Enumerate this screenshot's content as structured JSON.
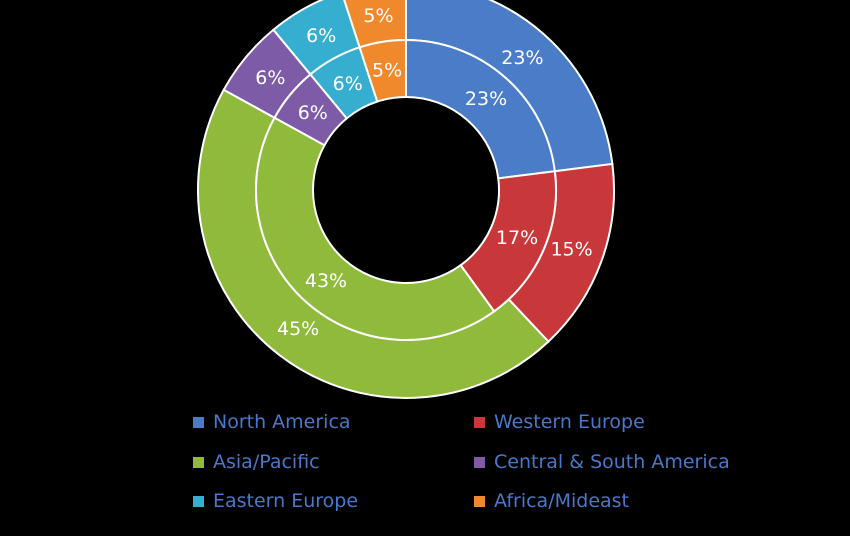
{
  "chart_data": {
    "type": "donut",
    "rings": [
      {
        "ring": "outer",
        "values": [
          23,
          15,
          45,
          6,
          6,
          5
        ],
        "labels": [
          "23%",
          "15%",
          "45%",
          "6%",
          "6%",
          "5%"
        ]
      },
      {
        "ring": "inner",
        "values": [
          23,
          17,
          43,
          6,
          6,
          5
        ],
        "labels": [
          "23%",
          "17%",
          "43%",
          "6%",
          "6%",
          "5%"
        ]
      }
    ],
    "categories": [
      {
        "name": "North America",
        "color": "#4a7cc7"
      },
      {
        "name": "Western Europe",
        "color": "#c8383a"
      },
      {
        "name": "Asia/Pacific",
        "color": "#8fba3c"
      },
      {
        "name": "Central & South America",
        "color": "#7d5ba6"
      },
      {
        "name": "Eastern Europe",
        "color": "#35aed0"
      },
      {
        "name": "Africa/Mideast",
        "color": "#f0892c"
      }
    ],
    "start_angle_deg": 0,
    "direction": "clockwise",
    "ring_border_color": "#ffffff",
    "legend_position": "bottom",
    "legend_text_color": "#4a78c9",
    "background": "#000000"
  }
}
